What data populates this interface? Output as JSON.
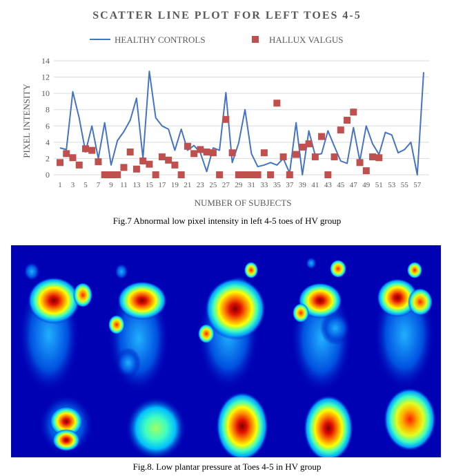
{
  "chart_data": {
    "type": "line+scatter",
    "title": "SCATTER LINE PLOT FOR LEFT TOES 4-5",
    "xlabel": "NUMBER OF SUBJECTS",
    "ylabel": "PIXEL INTENSITY",
    "ylim": [
      0,
      14
    ],
    "yticks": [
      0,
      2,
      4,
      6,
      8,
      10,
      12,
      14
    ],
    "xlim": [
      1,
      58
    ],
    "xticks": [
      1,
      3,
      5,
      7,
      9,
      11,
      13,
      15,
      17,
      19,
      21,
      23,
      25,
      27,
      29,
      31,
      33,
      35,
      37,
      39,
      41,
      43,
      45,
      47,
      49,
      51,
      53,
      55,
      57
    ],
    "grid": true,
    "legend_position": "top",
    "series": [
      {
        "name": "HEALTHY CONTROLS",
        "style": "line",
        "color": "#4472c4",
        "x": [
          1,
          2,
          3,
          4,
          5,
          6,
          7,
          8,
          9,
          10,
          11,
          12,
          13,
          14,
          15,
          16,
          17,
          18,
          19,
          20,
          21,
          22,
          23,
          24,
          25,
          26,
          27,
          28,
          29,
          30,
          31,
          32,
          33,
          34,
          35,
          36,
          37,
          38,
          39,
          40,
          41,
          42,
          43,
          44,
          45,
          46,
          47,
          48,
          49,
          50,
          51,
          52,
          53,
          54,
          55,
          56,
          57,
          58
        ],
        "y": [
          3.3,
          3.1,
          10.2,
          7.0,
          2.8,
          6.0,
          2.0,
          6.4,
          1.2,
          4.2,
          5.3,
          6.7,
          9.4,
          2.0,
          12.7,
          7.0,
          6.0,
          5.6,
          3.0,
          5.6,
          3.0,
          3.6,
          2.7,
          0.4,
          3.3,
          3.0,
          10.1,
          1.5,
          3.9,
          8.0,
          2.6,
          1.0,
          1.2,
          1.5,
          1.2,
          2.0,
          0.2,
          6.4,
          0.0,
          5.4,
          2.4,
          2.6,
          5.4,
          3.5,
          1.7,
          1.4,
          5.8,
          1.7,
          6.0,
          3.8,
          2.5,
          5.2,
          4.9,
          2.7,
          3.1,
          4.0,
          0.0,
          12.6
        ]
      },
      {
        "name": "HALLUX VALGUS",
        "style": "marker",
        "color": "#c0504d",
        "x": [
          1,
          2,
          3,
          4,
          5,
          6,
          7,
          8,
          9,
          10,
          11,
          12,
          13,
          14,
          15,
          16,
          17,
          18,
          19,
          20,
          21,
          22,
          23,
          24,
          25,
          26,
          27,
          28,
          29,
          30,
          31,
          32,
          33,
          34,
          35,
          36,
          37,
          38,
          39,
          40,
          41,
          42,
          43,
          44,
          45,
          46,
          47,
          48,
          49,
          50,
          51
        ],
        "y": [
          1.5,
          2.6,
          2.1,
          1.2,
          3.2,
          3.0,
          1.6,
          0.0,
          0.0,
          0.0,
          0.9,
          2.8,
          0.7,
          1.7,
          1.3,
          0.0,
          2.2,
          1.8,
          1.2,
          0.0,
          3.5,
          2.6,
          3.1,
          2.8,
          2.7,
          0.0,
          6.8,
          2.7,
          0.0,
          0.0,
          0.0,
          0.0,
          2.7,
          0.0,
          8.8,
          2.2,
          0.0,
          2.5,
          3.4,
          3.8,
          2.2,
          4.7,
          0.0,
          2.2,
          5.5,
          6.7,
          7.7,
          1.5,
          0.5,
          2.2,
          2.1
        ]
      }
    ]
  },
  "figures": {
    "fig7_caption": "Fig.7 Abnormal low pixel intensity in left 4-5 toes of HV group",
    "fig8_caption": "Fig.8. Low plantar pressure at Toes 4-5 in HV group"
  }
}
